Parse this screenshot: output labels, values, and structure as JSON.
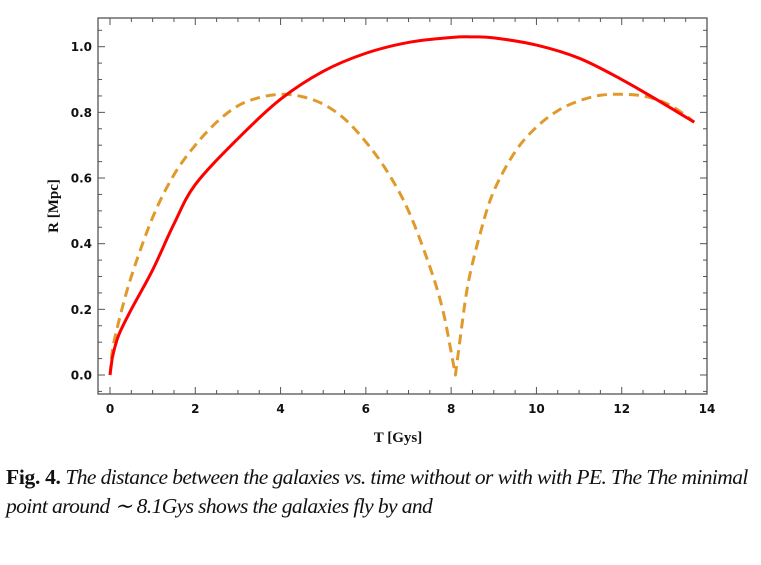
{
  "chart_data": {
    "type": "line",
    "xlabel": "T [Gys]",
    "ylabel": "R [Mpc]",
    "xlim": [
      -0.3,
      14
    ],
    "ylim": [
      -0.06,
      1.09
    ],
    "xticks": [
      0,
      2,
      4,
      6,
      8,
      10,
      12,
      14
    ],
    "yticks": [
      0.0,
      0.2,
      0.4,
      0.6,
      0.8,
      1.0
    ],
    "xtick_labels": [
      "0",
      "2",
      "4",
      "6",
      "8",
      "10",
      "12",
      "14"
    ],
    "ytick_labels": [
      "0.0",
      "0.2",
      "0.4",
      "0.6",
      "0.8",
      "1.0"
    ],
    "grid": false,
    "legend": "none",
    "series": [
      {
        "style": "solid",
        "color": "#ff0000",
        "x": [
          0,
          0.05,
          0.2,
          0.5,
          1,
          1.5,
          2,
          3,
          4,
          5,
          6,
          7,
          8,
          8.5,
          9,
          10,
          11,
          12,
          13,
          13.7
        ],
        "y": [
          0,
          0.05,
          0.12,
          0.2,
          0.32,
          0.46,
          0.58,
          0.72,
          0.84,
          0.925,
          0.98,
          1.013,
          1.028,
          1.03,
          1.027,
          1.005,
          0.965,
          0.9,
          0.825,
          0.77
        ]
      },
      {
        "style": "dashed",
        "color": "#e09a2c",
        "x": [
          0,
          0.05,
          0.2,
          0.5,
          1,
          1.5,
          2,
          2.5,
          3,
          3.5,
          4,
          4.5,
          5,
          5.5,
          6,
          6.5,
          7,
          7.5,
          7.8,
          8.0,
          8.1,
          8.2,
          8.4,
          8.7,
          9,
          9.5,
          10,
          10.5,
          11,
          11.5,
          12,
          12.5,
          13,
          13.4,
          13.7
        ],
        "y": [
          0,
          0.07,
          0.16,
          0.3,
          0.48,
          0.61,
          0.7,
          0.77,
          0.82,
          0.845,
          0.855,
          0.848,
          0.825,
          0.78,
          0.71,
          0.62,
          0.5,
          0.33,
          0.2,
          0.07,
          0.0,
          0.1,
          0.28,
          0.44,
          0.56,
          0.68,
          0.755,
          0.805,
          0.835,
          0.852,
          0.855,
          0.85,
          0.83,
          0.8,
          0.77
        ]
      }
    ]
  },
  "caption": {
    "label": "Fig. 4.",
    "text": "The distance between the galaxies vs. time without or with with PE. The The minimal point around ∼ 8.1Gys shows the galaxies fly by and"
  }
}
